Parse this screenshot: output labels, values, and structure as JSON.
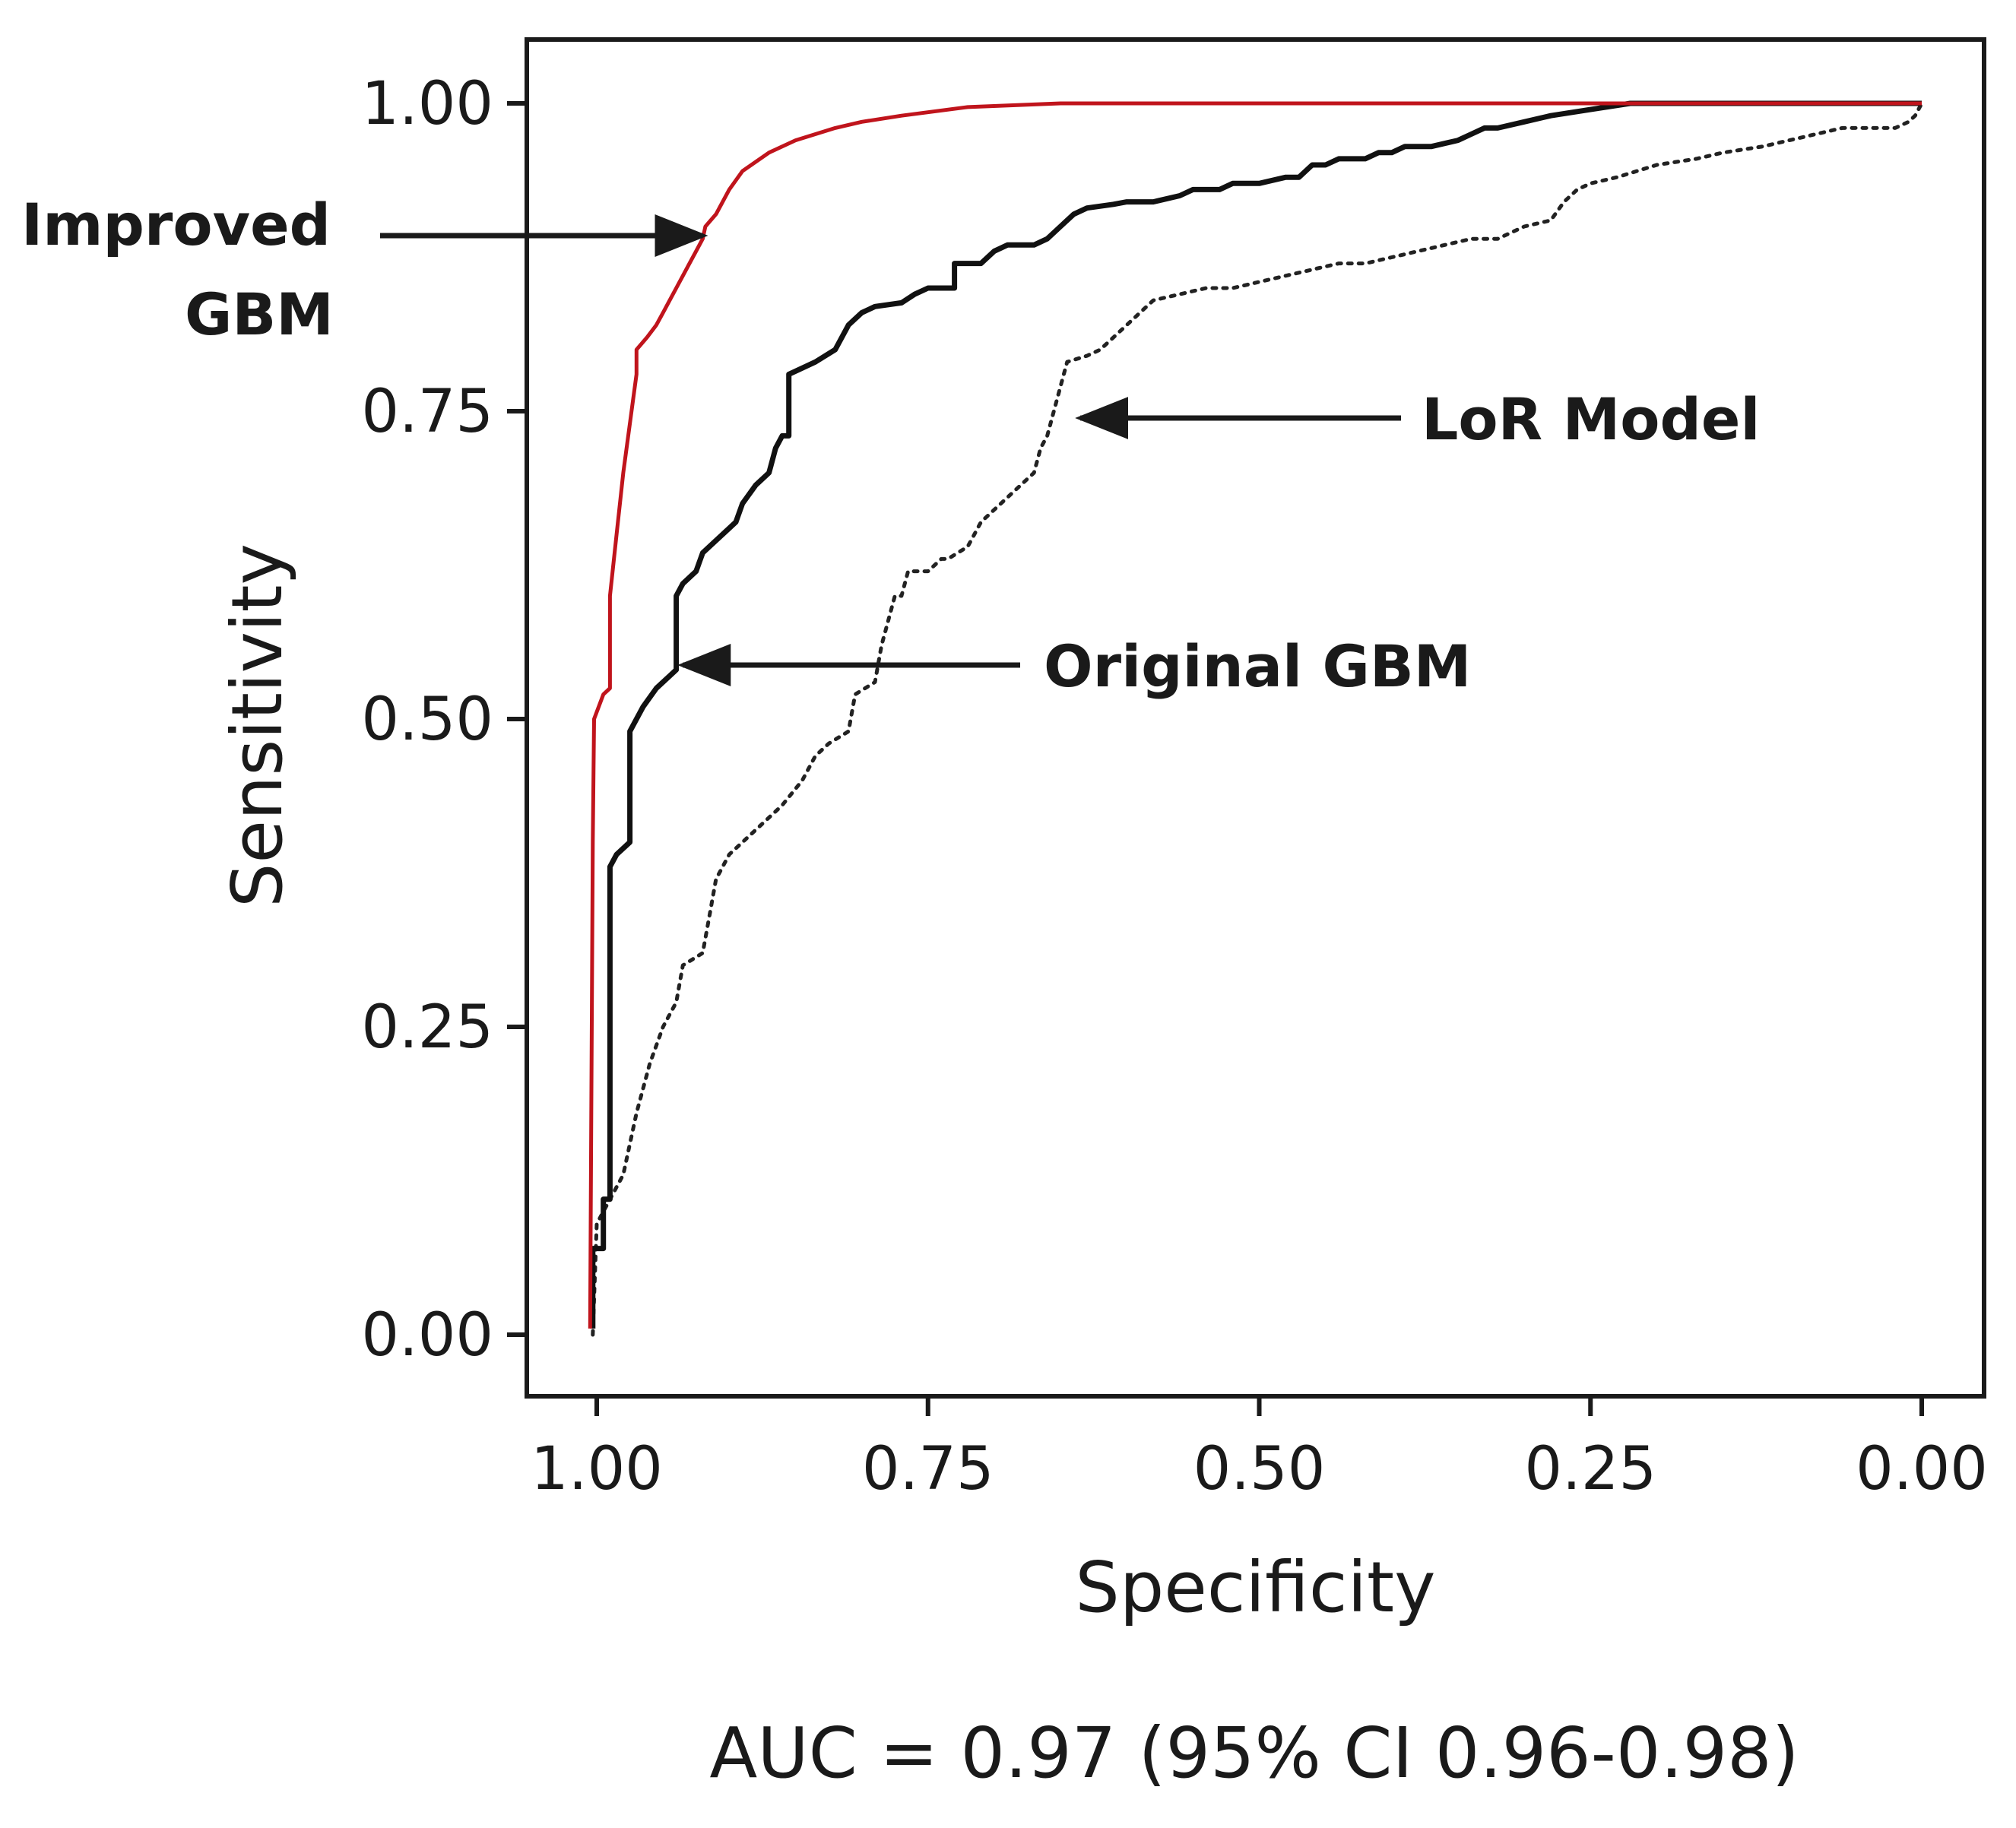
{
  "chart_data": {
    "type": "line",
    "title": "",
    "xlabel": "Specificity",
    "ylabel": "Sensitivity",
    "xlim": [
      1.0,
      0.0
    ],
    "ylim": [
      0.0,
      1.0
    ],
    "x_reversed": true,
    "grid": false,
    "x_ticks": [
      1.0,
      0.75,
      0.5,
      0.25,
      0.0
    ],
    "x_tick_labels": [
      "1.00",
      "0.75",
      "0.50",
      "0.25",
      "0.00"
    ],
    "y_ticks": [
      0.0,
      0.25,
      0.5,
      0.75,
      1.0
    ],
    "y_tick_labels": [
      "0.00",
      "0.25",
      "0.50",
      "0.75",
      "1.00"
    ],
    "colors": {
      "improved": "#c0141c",
      "original": "#111111",
      "lor": "#222222",
      "axis": "#1a1a1a"
    },
    "series": [
      {
        "name": "Improved GBM",
        "style": "solid",
        "color": "#c0141c",
        "points": [
          [
            1.005,
            0.005
          ],
          [
            1.004,
            0.2
          ],
          [
            1.003,
            0.4
          ],
          [
            1.002,
            0.5
          ],
          [
            0.995,
            0.52
          ],
          [
            0.99,
            0.525
          ],
          [
            0.99,
            0.6
          ],
          [
            0.985,
            0.65
          ],
          [
            0.98,
            0.7
          ],
          [
            0.975,
            0.74
          ],
          [
            0.97,
            0.78
          ],
          [
            0.97,
            0.8
          ],
          [
            0.962,
            0.81
          ],
          [
            0.955,
            0.82
          ],
          [
            0.95,
            0.83
          ],
          [
            0.945,
            0.84
          ],
          [
            0.94,
            0.85
          ],
          [
            0.935,
            0.86
          ],
          [
            0.93,
            0.87
          ],
          [
            0.925,
            0.88
          ],
          [
            0.92,
            0.89
          ],
          [
            0.918,
            0.9
          ],
          [
            0.91,
            0.91
          ],
          [
            0.9,
            0.93
          ],
          [
            0.89,
            0.945
          ],
          [
            0.87,
            0.96
          ],
          [
            0.85,
            0.97
          ],
          [
            0.82,
            0.98
          ],
          [
            0.8,
            0.985
          ],
          [
            0.77,
            0.99
          ],
          [
            0.72,
            0.997
          ],
          [
            0.65,
            1.0
          ],
          [
            0.5,
            1.0
          ],
          [
            0.25,
            1.0
          ],
          [
            0.0,
            1.0
          ]
        ]
      },
      {
        "name": "Original GBM",
        "style": "solid",
        "color": "#111111",
        "points": [
          [
            1.003,
            0.005
          ],
          [
            1.003,
            0.07
          ],
          [
            0.995,
            0.07
          ],
          [
            0.995,
            0.11
          ],
          [
            0.99,
            0.11
          ],
          [
            0.99,
            0.15
          ],
          [
            0.99,
            0.38
          ],
          [
            0.985,
            0.39
          ],
          [
            0.975,
            0.4
          ],
          [
            0.975,
            0.49
          ],
          [
            0.965,
            0.51
          ],
          [
            0.955,
            0.525
          ],
          [
            0.945,
            0.535
          ],
          [
            0.94,
            0.54
          ],
          [
            0.94,
            0.6
          ],
          [
            0.935,
            0.61
          ],
          [
            0.925,
            0.62
          ],
          [
            0.92,
            0.635
          ],
          [
            0.91,
            0.645
          ],
          [
            0.9,
            0.655
          ],
          [
            0.895,
            0.66
          ],
          [
            0.89,
            0.675
          ],
          [
            0.88,
            0.69
          ],
          [
            0.87,
            0.7
          ],
          [
            0.865,
            0.72
          ],
          [
            0.86,
            0.73
          ],
          [
            0.855,
            0.73
          ],
          [
            0.855,
            0.78
          ],
          [
            0.845,
            0.785
          ],
          [
            0.835,
            0.79
          ],
          [
            0.82,
            0.8
          ],
          [
            0.81,
            0.82
          ],
          [
            0.8,
            0.83
          ],
          [
            0.79,
            0.835
          ],
          [
            0.77,
            0.838
          ],
          [
            0.76,
            0.845
          ],
          [
            0.75,
            0.85
          ],
          [
            0.73,
            0.85
          ],
          [
            0.73,
            0.87
          ],
          [
            0.71,
            0.87
          ],
          [
            0.7,
            0.88
          ],
          [
            0.69,
            0.885
          ],
          [
            0.67,
            0.885
          ],
          [
            0.66,
            0.89
          ],
          [
            0.65,
            0.9
          ],
          [
            0.64,
            0.91
          ],
          [
            0.63,
            0.915
          ],
          [
            0.61,
            0.918
          ],
          [
            0.6,
            0.92
          ],
          [
            0.58,
            0.92
          ],
          [
            0.56,
            0.925
          ],
          [
            0.55,
            0.93
          ],
          [
            0.53,
            0.93
          ],
          [
            0.52,
            0.935
          ],
          [
            0.5,
            0.935
          ],
          [
            0.48,
            0.94
          ],
          [
            0.47,
            0.94
          ],
          [
            0.46,
            0.95
          ],
          [
            0.45,
            0.95
          ],
          [
            0.44,
            0.955
          ],
          [
            0.42,
            0.955
          ],
          [
            0.41,
            0.96
          ],
          [
            0.4,
            0.96
          ],
          [
            0.39,
            0.965
          ],
          [
            0.37,
            0.965
          ],
          [
            0.35,
            0.97
          ],
          [
            0.34,
            0.975
          ],
          [
            0.33,
            0.98
          ],
          [
            0.32,
            0.98
          ],
          [
            0.3,
            0.985
          ],
          [
            0.28,
            0.99
          ],
          [
            0.25,
            0.995
          ],
          [
            0.22,
            1.0
          ],
          [
            0.15,
            1.0
          ],
          [
            0.0,
            1.0
          ]
        ]
      },
      {
        "name": "LoR Model",
        "style": "dotted",
        "color": "#222222",
        "points": [
          [
            1.003,
            0.0
          ],
          [
            1.0,
            0.09
          ],
          [
            0.99,
            0.11
          ],
          [
            0.98,
            0.13
          ],
          [
            0.97,
            0.18
          ],
          [
            0.96,
            0.22
          ],
          [
            0.95,
            0.25
          ],
          [
            0.94,
            0.27
          ],
          [
            0.935,
            0.3
          ],
          [
            0.92,
            0.31
          ],
          [
            0.915,
            0.34
          ],
          [
            0.91,
            0.37
          ],
          [
            0.9,
            0.39
          ],
          [
            0.88,
            0.41
          ],
          [
            0.86,
            0.43
          ],
          [
            0.845,
            0.45
          ],
          [
            0.835,
            0.47
          ],
          [
            0.825,
            0.48
          ],
          [
            0.81,
            0.49
          ],
          [
            0.805,
            0.52
          ],
          [
            0.79,
            0.53
          ],
          [
            0.785,
            0.56
          ],
          [
            0.78,
            0.58
          ],
          [
            0.775,
            0.6
          ],
          [
            0.77,
            0.6
          ],
          [
            0.765,
            0.62
          ],
          [
            0.75,
            0.62
          ],
          [
            0.74,
            0.63
          ],
          [
            0.735,
            0.63
          ],
          [
            0.72,
            0.64
          ],
          [
            0.71,
            0.66
          ],
          [
            0.7,
            0.67
          ],
          [
            0.69,
            0.68
          ],
          [
            0.68,
            0.69
          ],
          [
            0.67,
            0.7
          ],
          [
            0.665,
            0.72
          ],
          [
            0.66,
            0.73
          ],
          [
            0.655,
            0.75
          ],
          [
            0.65,
            0.77
          ],
          [
            0.645,
            0.79
          ],
          [
            0.63,
            0.795
          ],
          [
            0.62,
            0.8
          ],
          [
            0.61,
            0.81
          ],
          [
            0.6,
            0.82
          ],
          [
            0.59,
            0.83
          ],
          [
            0.58,
            0.84
          ],
          [
            0.56,
            0.845
          ],
          [
            0.54,
            0.85
          ],
          [
            0.52,
            0.85
          ],
          [
            0.5,
            0.855
          ],
          [
            0.48,
            0.86
          ],
          [
            0.46,
            0.865
          ],
          [
            0.44,
            0.87
          ],
          [
            0.42,
            0.87
          ],
          [
            0.4,
            0.875
          ],
          [
            0.38,
            0.88
          ],
          [
            0.36,
            0.885
          ],
          [
            0.34,
            0.89
          ],
          [
            0.32,
            0.89
          ],
          [
            0.3,
            0.9
          ],
          [
            0.28,
            0.905
          ],
          [
            0.27,
            0.92
          ],
          [
            0.26,
            0.93
          ],
          [
            0.25,
            0.935
          ],
          [
            0.23,
            0.94
          ],
          [
            0.2,
            0.95
          ],
          [
            0.17,
            0.955
          ],
          [
            0.15,
            0.96
          ],
          [
            0.12,
            0.965
          ],
          [
            0.1,
            0.97
          ],
          [
            0.08,
            0.975
          ],
          [
            0.06,
            0.98
          ],
          [
            0.04,
            0.98
          ],
          [
            0.02,
            0.98
          ],
          [
            0.01,
            0.985
          ],
          [
            0.005,
            0.99
          ],
          [
            0.0,
            1.0
          ]
        ]
      }
    ],
    "annotations": [
      {
        "lines": [
          "Improved",
          "GBM"
        ],
        "arrow_target": [
          0.92,
          0.89
        ],
        "series": "Improved GBM"
      },
      {
        "lines": [
          "LoR Model"
        ],
        "arrow_target": [
          0.635,
          0.745
        ],
        "series": "LoR Model"
      },
      {
        "lines": [
          "Original GBM"
        ],
        "arrow_target": [
          0.935,
          0.545
        ],
        "series": "Original GBM"
      }
    ],
    "caption": "AUC = 0.97 (95% CI 0.96-0.98)"
  }
}
